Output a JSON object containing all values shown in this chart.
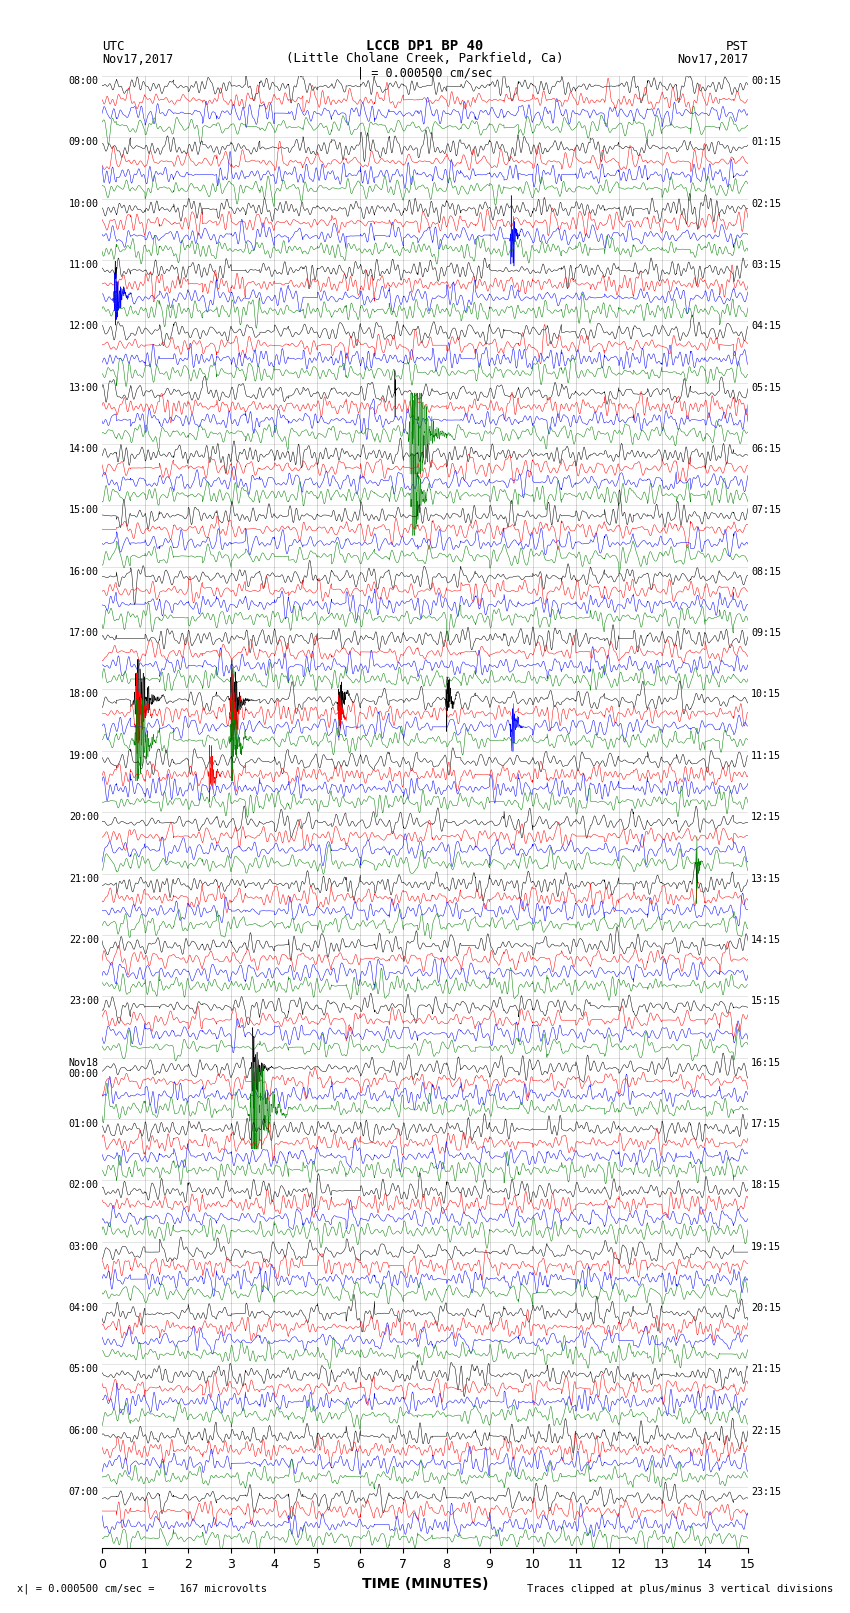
{
  "title_line1": "LCCB DP1 BP 40",
  "title_line2": "(Little Cholane Creek, Parkfield, Ca)",
  "scale_value_text": "= 0.000500 cm/sec =    167 microvolts",
  "clip_text": "Traces clipped at plus/minus 3 vertical divisions",
  "xlabel": "TIME (MINUTES)",
  "utc_labels": [
    "08:00",
    "09:00",
    "10:00",
    "11:00",
    "12:00",
    "13:00",
    "14:00",
    "15:00",
    "16:00",
    "17:00",
    "18:00",
    "19:00",
    "20:00",
    "21:00",
    "22:00",
    "23:00",
    "Nov18\n00:00",
    "01:00",
    "02:00",
    "03:00",
    "04:00",
    "05:00",
    "06:00",
    "07:00"
  ],
  "pst_labels": [
    "00:15",
    "01:15",
    "02:15",
    "03:15",
    "04:15",
    "05:15",
    "06:15",
    "07:15",
    "08:15",
    "09:15",
    "10:15",
    "11:15",
    "12:15",
    "13:15",
    "14:15",
    "15:15",
    "16:15",
    "17:15",
    "18:15",
    "19:15",
    "20:15",
    "21:15",
    "22:15",
    "23:15"
  ],
  "colors": [
    "black",
    "red",
    "blue",
    "green"
  ],
  "num_rows": 24,
  "traces_per_row": 4,
  "figsize": [
    8.5,
    16.13
  ],
  "dpi": 100,
  "bg_color": "white",
  "minutes": 15
}
